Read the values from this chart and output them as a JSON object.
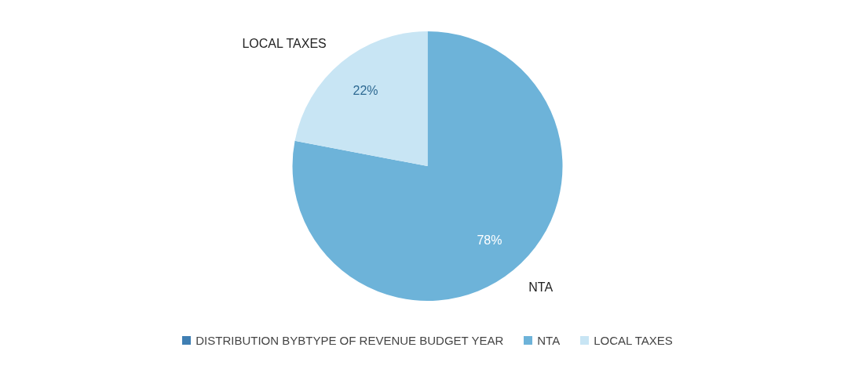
{
  "chart_data": {
    "type": "pie",
    "categories": [
      "NTA",
      "LOCAL TAXES"
    ],
    "series": [
      {
        "name": "DISTRIBUTION BYBTYPE OF REVENUE BUDGET YEAR",
        "color": "#3f7fb3",
        "values": [
          78,
          22
        ]
      }
    ],
    "colors": [
      "#6db3d9",
      "#c8e5f4"
    ],
    "value_labels": [
      "78%",
      "22%"
    ],
    "legend": "bottom"
  }
}
